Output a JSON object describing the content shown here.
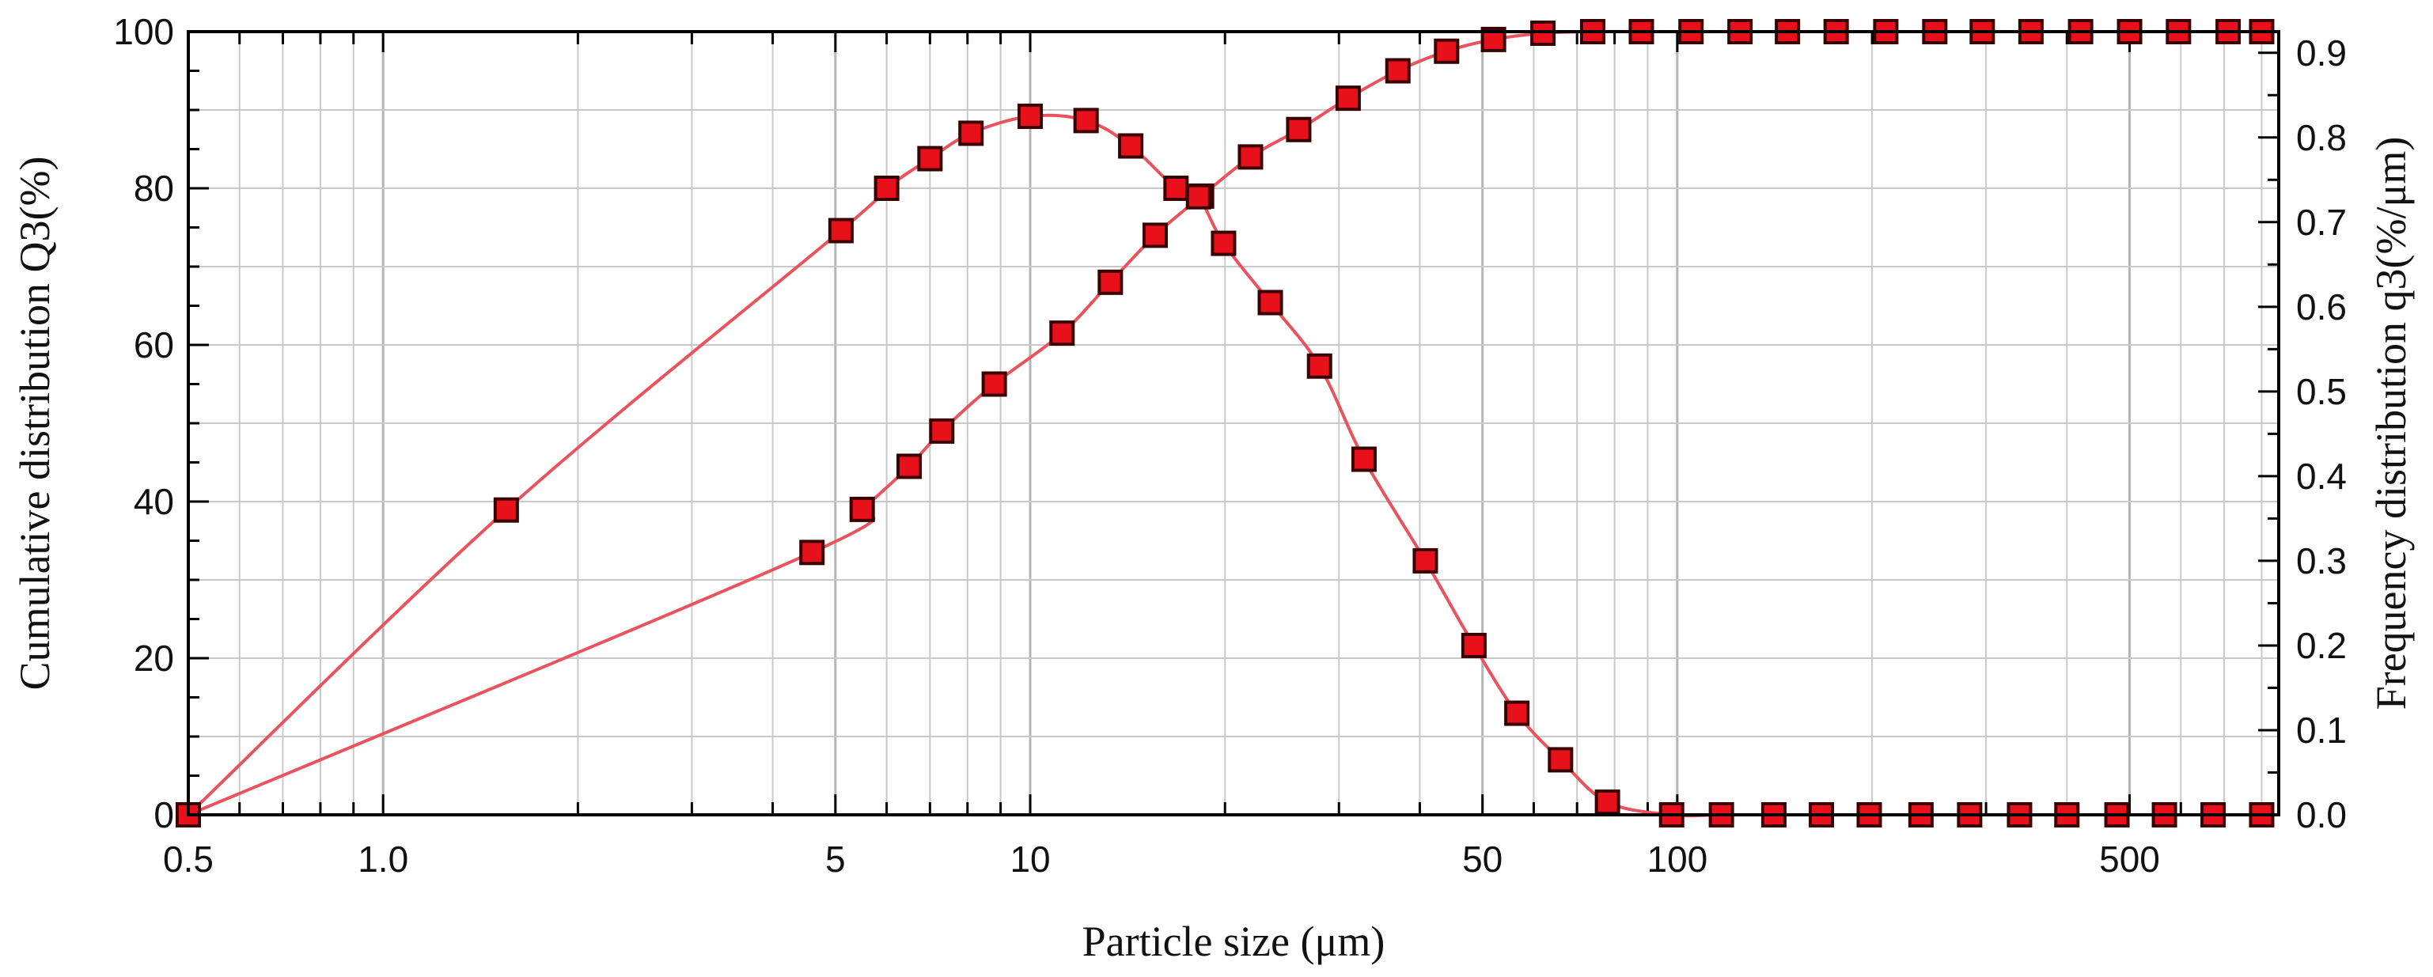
{
  "chart_data": {
    "type": "line",
    "title": "",
    "xlabel": "Particle size (μm)",
    "ylabel": "Cumulative distribution Q3(%)",
    "y2label": "Frequency distribution q3(%/μm)",
    "x_scale": "log",
    "xlim": [
      0.5,
      850
    ],
    "ylim": [
      0,
      100
    ],
    "y2lim": [
      0,
      0.925
    ],
    "grid": true,
    "legend": "none",
    "x_tick_labels": [
      "0.5",
      "1.0",
      "5",
      "10",
      "50",
      "100",
      "500"
    ],
    "y_tick_labels": [
      "0",
      "20",
      "40",
      "60",
      "80",
      "100"
    ],
    "y2_tick_labels": [
      "0.0",
      "0.1",
      "0.2",
      "0.3",
      "0.4",
      "0.5",
      "0.6",
      "0.7",
      "0.8",
      "0.9"
    ],
    "colors": {
      "line": "#e8535e",
      "marker_fill": "#e8101a",
      "marker_edge": "#3a0000",
      "grid": "#c9c9c9",
      "axis": "#000000"
    },
    "series": [
      {
        "axis": "left",
        "x": [
          0.5,
          4.6,
          5.5,
          6.5,
          7.3,
          8.8,
          11.2,
          13.3,
          15.6,
          18.4,
          21.9,
          26.0,
          31.0,
          37.0,
          44.0,
          52.0,
          62.0,
          74.0,
          88.0,
          105,
          125,
          148,
          176,
          210,
          250,
          296,
          352,
          420,
          500,
          595,
          710,
          800
        ],
        "values": [
          0,
          33.5,
          39,
          44.5,
          49,
          55,
          61.5,
          68,
          74,
          79,
          84,
          87.5,
          91.5,
          95,
          97.5,
          99,
          99.8,
          100,
          100,
          100,
          100,
          100,
          100,
          100,
          100,
          100,
          100,
          100,
          100,
          100,
          100,
          100
        ]
      },
      {
        "axis": "right",
        "x": [
          0.5,
          1.55,
          5.1,
          6.0,
          7.0,
          8.1,
          10.0,
          12.2,
          14.3,
          16.8,
          18.2,
          19.9,
          23.5,
          28.0,
          32.8,
          40.8,
          48.5,
          56.5,
          66.0,
          78.0,
          98.0,
          117,
          141,
          167,
          198,
          238,
          283,
          338,
          400,
          478,
          566,
          673,
          800
        ],
        "values": [
          0,
          0.36,
          0.69,
          0.74,
          0.775,
          0.805,
          0.825,
          0.82,
          0.79,
          0.74,
          0.73,
          0.675,
          0.605,
          0.53,
          0.42,
          0.3,
          0.2,
          0.12,
          0.065,
          0.015,
          0,
          0,
          0,
          0,
          0,
          0,
          0,
          0,
          0,
          0,
          0,
          0,
          0
        ]
      }
    ]
  }
}
